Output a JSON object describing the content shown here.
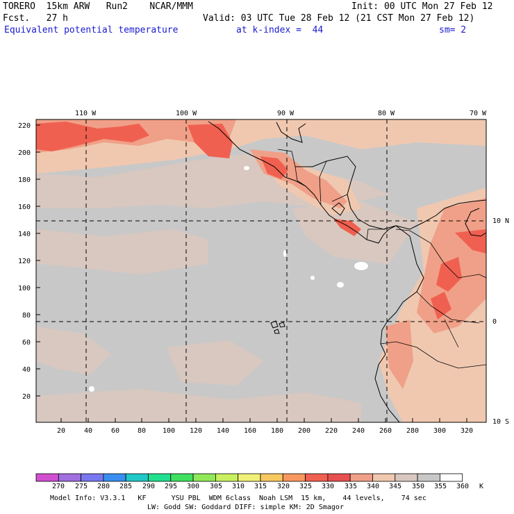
{
  "header": {
    "model": "TORERO  15km ARW   Run2    NCAR/MMM",
    "init": "Init: 00 UTC Mon 27 Feb 12",
    "fcst": "Fcst.   27 h",
    "valid": "Valid: 03 UTC Tue 28 Feb 12 (21 CST Mon 27 Feb 12)",
    "field": "Equivalent potential temperature",
    "level": "at k-index =  44",
    "smooth": "sm= 2"
  },
  "map": {
    "lon_labels": [
      "110 W",
      "100 W",
      "90 W",
      "80 W",
      "70 W"
    ],
    "lat_labels": [
      "10 N",
      "0",
      "10 S"
    ],
    "y_ticks": [
      "220",
      "200",
      "180",
      "160",
      "140",
      "120",
      "100",
      "80",
      "60",
      "40",
      "20"
    ],
    "x_ticks": [
      "20",
      "40",
      "60",
      "80",
      "100",
      "120",
      "140",
      "160",
      "180",
      "200",
      "220",
      "240",
      "260",
      "280",
      "300",
      "320"
    ]
  },
  "colorbar": {
    "labels": [
      "270",
      "275",
      "280",
      "285",
      "290",
      "295",
      "300",
      "305",
      "310",
      "315",
      "320",
      "325",
      "330",
      "335",
      "340",
      "345",
      "350",
      "355",
      "360"
    ],
    "unit": "K",
    "colors": [
      "#d050d0",
      "#a070e0",
      "#7878f0",
      "#3a8ef0",
      "#20c8c8",
      "#20e090",
      "#40e060",
      "#90e858",
      "#c8f060",
      "#f0f078",
      "#f8c860",
      "#f89860",
      "#f06050",
      "#e85050",
      "#f0a088",
      "#f0c8b0",
      "#d8c8c0",
      "#c8c8c8",
      "#ffffff"
    ]
  },
  "footer": {
    "line1": "Model Info: V3.3.1   KF      YSU PBL  WDM 6class  Noah LSM  15 km,    44 levels,    74 sec",
    "line2": "LW: Godd SW: Goddard DIFF: simple KM: 2D Smagor"
  }
}
